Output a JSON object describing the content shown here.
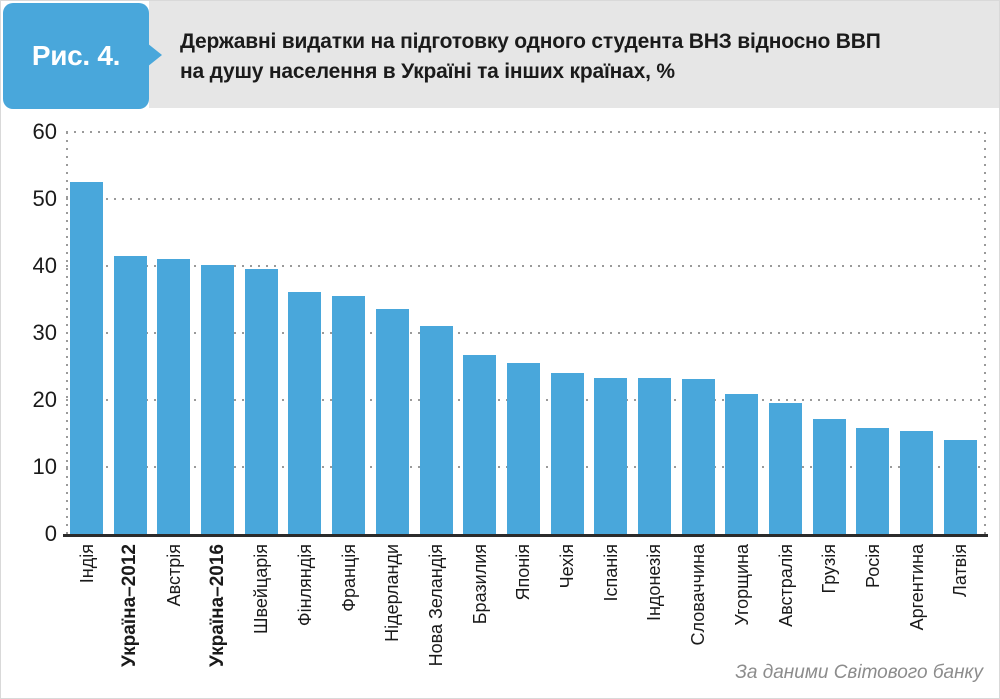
{
  "figure_label": "Рис. 4.",
  "title": {
    "line1": "Державні видатки на підготовку одного студента ВНЗ відносно ВВП",
    "line2": "на душу населення в Україні та інших країнах, %"
  },
  "source_note": "За даними Світового банку",
  "colors": {
    "bar": "#49a7db",
    "badge": "#49a7db",
    "band": "#e6e6e6",
    "baseline": "#2b2b2b",
    "grid_dot": "#9a9a9a"
  },
  "chart_data": {
    "type": "bar",
    "title": "Державні видатки на підготовку одного студента ВНЗ відносно ВВП на душу населення в Україні та інших країнах, %",
    "categories": [
      "Індія",
      "Україна–2012",
      "Австрія",
      "Україна–2016",
      "Швейцарія",
      "Фінляндія",
      "Франція",
      "Нідерланди",
      "Нова Зеландія",
      "Бразилия",
      "Японія",
      "Чехія",
      "Іспанія",
      "Індонезія",
      "Словаччина",
      "Угорщина",
      "Австралія",
      "Грузія",
      "Росія",
      "Аргентина",
      "Латвія"
    ],
    "values": [
      52.5,
      41.5,
      41.0,
      40.2,
      39.5,
      36.1,
      35.5,
      33.6,
      31.1,
      26.7,
      25.6,
      24.0,
      23.3,
      23.3,
      23.2,
      20.9,
      19.5,
      17.1,
      15.8,
      15.4,
      14.1
    ],
    "bold_category_indices": [
      1,
      3
    ],
    "xlabel": "",
    "ylabel": "",
    "ylim": [
      0,
      60
    ],
    "yticks": [
      0,
      10,
      20,
      30,
      40,
      50,
      60
    ],
    "grid": "dotted horizontal gridlines, dotted left and right plot borders, solid dark baseline",
    "legend": "none",
    "bar_color": "#49a7db",
    "source": "За даними Світового банку"
  }
}
